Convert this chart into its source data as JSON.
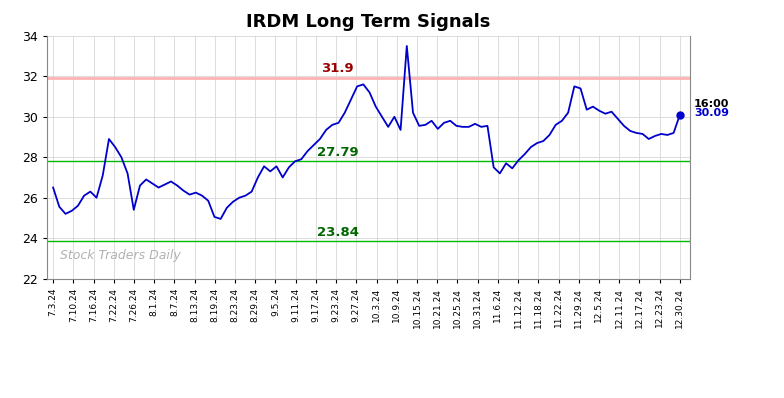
{
  "title": "IRDM Long Term Signals",
  "watermark": "Stock Traders Daily",
  "hline_red": 31.9,
  "hline_green1": 27.79,
  "hline_green2": 23.84,
  "last_label": "16:00",
  "last_value": 30.09,
  "ylim": [
    22,
    34
  ],
  "yticks": [
    22,
    24,
    26,
    28,
    30,
    32,
    34
  ],
  "line_color": "#0000cc",
  "hline_red_color": "#ffb3b3",
  "hline_green_color": "#00bb00",
  "annotation_red_color": "#990000",
  "annotation_green_color": "#006600",
  "x_labels": [
    "7.3.24",
    "7.10.24",
    "7.16.24",
    "7.22.24",
    "7.26.24",
    "8.1.24",
    "8.7.24",
    "8.13.24",
    "8.19.24",
    "8.23.24",
    "8.29.24",
    "9.5.24",
    "9.11.24",
    "9.17.24",
    "9.23.24",
    "9.27.24",
    "10.3.24",
    "10.9.24",
    "10.15.24",
    "10.21.24",
    "10.25.24",
    "10.31.24",
    "11.6.24",
    "11.12.24",
    "11.18.24",
    "11.22.24",
    "11.29.24",
    "12.5.24",
    "12.11.24",
    "12.17.24",
    "12.23.24",
    "12.30.24"
  ],
  "prices": [
    26.5,
    25.55,
    25.2,
    25.35,
    25.6,
    26.1,
    26.3,
    26.0,
    27.1,
    28.9,
    28.5,
    28.0,
    27.2,
    25.4,
    26.6,
    26.9,
    26.7,
    26.5,
    26.65,
    26.8,
    26.6,
    26.35,
    26.15,
    26.25,
    26.1,
    25.85,
    25.05,
    24.95,
    25.5,
    25.8,
    26.0,
    26.1,
    26.3,
    27.0,
    27.55,
    27.3,
    27.55,
    27.0,
    27.5,
    27.8,
    27.9,
    28.3,
    28.6,
    28.9,
    29.35,
    29.6,
    29.7,
    30.2,
    30.85,
    31.5,
    31.6,
    31.2,
    30.5,
    30.0,
    29.5,
    30.0,
    29.35,
    33.5,
    30.2,
    29.55,
    29.6,
    29.8,
    29.4,
    29.7,
    29.8,
    29.55,
    29.5,
    29.5,
    29.65,
    29.5,
    29.55,
    27.5,
    27.2,
    27.7,
    27.45,
    27.85,
    28.15,
    28.5,
    28.7,
    28.8,
    29.1,
    29.6,
    29.8,
    30.2,
    31.5,
    31.4,
    30.35,
    30.5,
    30.3,
    30.15,
    30.25,
    29.9,
    29.55,
    29.3,
    29.2,
    29.15,
    28.9,
    29.05,
    29.15,
    29.1,
    29.2,
    30.09
  ]
}
